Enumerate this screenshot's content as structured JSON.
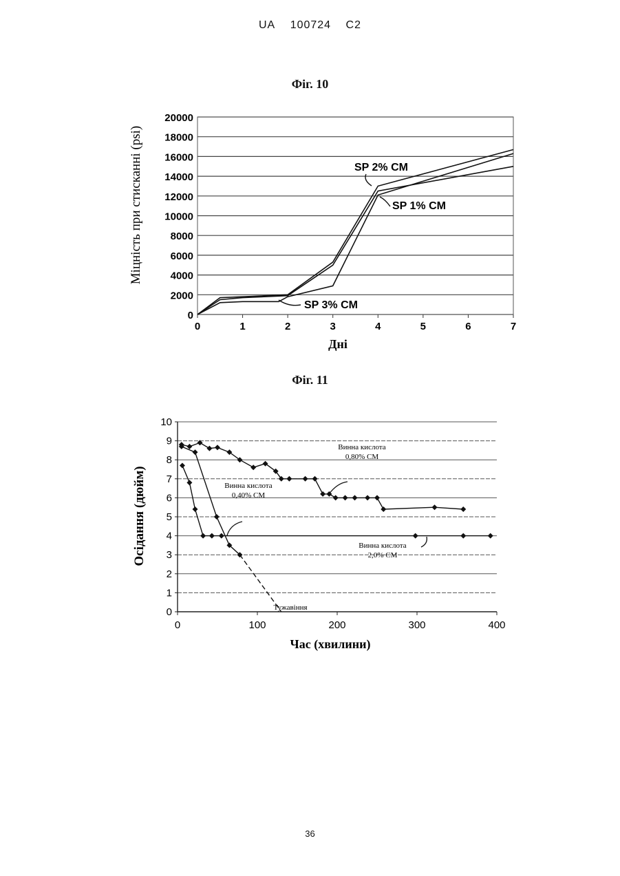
{
  "header": {
    "country": "UA",
    "number": "100724",
    "kind": "C2"
  },
  "page_number": "36",
  "chart_data": [
    {
      "figure_label": "Фіг. 10",
      "type": "line",
      "xlabel": "Дні",
      "ylabel": "Міцність при стисканні (psi)",
      "xlim": [
        0,
        7
      ],
      "ylim": [
        0,
        20000
      ],
      "x_ticks": [
        "0",
        "1",
        "2",
        "3",
        "4",
        "5",
        "6",
        "7"
      ],
      "y_ticks": [
        "0",
        "2000",
        "4000",
        "6000",
        "8000",
        "10000",
        "12000",
        "14000",
        "16000",
        "18000",
        "20000"
      ],
      "grid": "horizontal",
      "series": [
        {
          "name": "SP 2% CM",
          "x": [
            0,
            0.5,
            1,
            2,
            3,
            4,
            7
          ],
          "y": [
            0,
            1700,
            1800,
            2000,
            5300,
            13000,
            16700
          ]
        },
        {
          "name": "SP 1% CM",
          "x": [
            0,
            0.5,
            1,
            2,
            3,
            4,
            7
          ],
          "y": [
            0,
            1500,
            1700,
            1900,
            5000,
            12500,
            15000
          ]
        },
        {
          "name": "SP 3% CM",
          "x": [
            0,
            0.5,
            1,
            1.8,
            2,
            3,
            4,
            7
          ],
          "y": [
            0,
            1200,
            1300,
            1300,
            1800,
            2900,
            12100,
            16300
          ]
        }
      ]
    },
    {
      "figure_label": "Фіг. 11",
      "type": "line",
      "xlabel": "Час (хвилини)",
      "ylabel": "Осідання (дюйм)",
      "xlim": [
        0,
        400
      ],
      "ylim": [
        0,
        10
      ],
      "x_ticks": [
        "0",
        "100",
        "200",
        "300",
        "400"
      ],
      "y_ticks": [
        "0",
        "1",
        "2",
        "3",
        "4",
        "5",
        "6",
        "7",
        "8",
        "9",
        "10"
      ],
      "grid": "horizontal",
      "series": [
        {
          "name": "Винна кислота 0,80% CM",
          "x": [
            5,
            15,
            28,
            40,
            50,
            65,
            78,
            95,
            110,
            123,
            130,
            140,
            160,
            172,
            182,
            190,
            198,
            210,
            222,
            238,
            250,
            258,
            322,
            358
          ],
          "y": [
            8.8,
            8.7,
            8.9,
            8.6,
            8.65,
            8.4,
            8.0,
            7.6,
            7.8,
            7.4,
            7.0,
            7.0,
            7.0,
            7.0,
            6.2,
            6.2,
            6.0,
            6.0,
            6.0,
            6.0,
            6.0,
            5.4,
            5.5,
            5.4
          ]
        },
        {
          "name": "Винна кислота 0,40% CM",
          "x": [
            5,
            22,
            49,
            65,
            78
          ],
          "y": [
            8.7,
            8.4,
            5.0,
            3.5,
            3.0
          ]
        },
        {
          "name": "Винна кислота 2,0% CM",
          "x": [
            6,
            15,
            22,
            32,
            43,
            55,
            298,
            358,
            392
          ],
          "y": [
            7.7,
            6.8,
            5.4,
            4.0,
            4.0,
            4.0,
            4.0,
            4.0,
            4.0
          ]
        },
        {
          "name": "Тужавіння",
          "x": [
            78,
            130
          ],
          "y": [
            3.0,
            0.0
          ],
          "dashed": true
        }
      ]
    }
  ]
}
